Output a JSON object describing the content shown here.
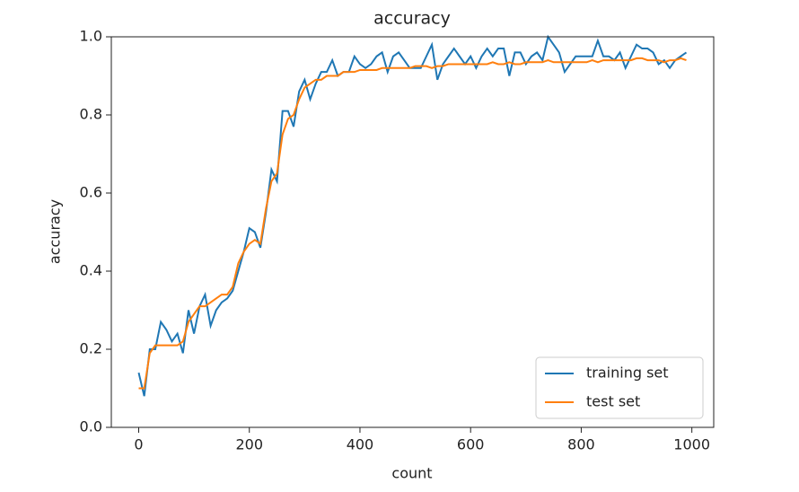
{
  "chart_data": {
    "type": "line",
    "title": "accuracy",
    "x_label": "count",
    "y_label": "accuracy",
    "x": [
      0,
      10,
      20,
      30,
      40,
      50,
      60,
      70,
      80,
      90,
      100,
      110,
      120,
      130,
      140,
      150,
      160,
      170,
      180,
      190,
      200,
      210,
      220,
      230,
      240,
      250,
      260,
      270,
      280,
      290,
      300,
      310,
      320,
      330,
      340,
      350,
      360,
      370,
      380,
      390,
      400,
      410,
      420,
      430,
      440,
      450,
      460,
      470,
      480,
      490,
      500,
      510,
      520,
      530,
      540,
      550,
      560,
      570,
      580,
      590,
      600,
      610,
      620,
      630,
      640,
      650,
      660,
      670,
      680,
      690,
      700,
      710,
      720,
      730,
      740,
      750,
      760,
      770,
      780,
      790,
      800,
      810,
      820,
      830,
      840,
      850,
      860,
      870,
      880,
      890,
      900,
      910,
      920,
      930,
      940,
      950,
      960,
      970,
      980,
      990
    ],
    "series": [
      {
        "name": "training set",
        "color": "#1f77b4",
        "values": [
          0.14,
          0.08,
          0.2,
          0.2,
          0.27,
          0.25,
          0.22,
          0.24,
          0.19,
          0.3,
          0.24,
          0.31,
          0.34,
          0.26,
          0.3,
          0.32,
          0.33,
          0.35,
          0.4,
          0.45,
          0.51,
          0.5,
          0.46,
          0.55,
          0.66,
          0.63,
          0.81,
          0.81,
          0.77,
          0.86,
          0.89,
          0.84,
          0.88,
          0.91,
          0.91,
          0.94,
          0.9,
          0.91,
          0.91,
          0.95,
          0.93,
          0.92,
          0.93,
          0.95,
          0.96,
          0.91,
          0.95,
          0.96,
          0.94,
          0.92,
          0.92,
          0.92,
          0.95,
          0.98,
          0.89,
          0.93,
          0.95,
          0.97,
          0.95,
          0.93,
          0.95,
          0.92,
          0.95,
          0.97,
          0.95,
          0.97,
          0.97,
          0.9,
          0.96,
          0.96,
          0.93,
          0.95,
          0.96,
          0.94,
          1.0,
          0.98,
          0.96,
          0.91,
          0.93,
          0.95,
          0.95,
          0.95,
          0.95,
          0.99,
          0.95,
          0.95,
          0.94,
          0.96,
          0.92,
          0.95,
          0.98,
          0.97,
          0.97,
          0.96,
          0.93,
          0.94,
          0.92,
          0.94,
          0.95,
          0.96
        ]
      },
      {
        "name": "test set",
        "color": "#ff7f0e",
        "values": [
          0.1,
          0.1,
          0.19,
          0.21,
          0.21,
          0.21,
          0.21,
          0.21,
          0.22,
          0.27,
          0.29,
          0.31,
          0.31,
          0.32,
          0.33,
          0.34,
          0.34,
          0.36,
          0.42,
          0.45,
          0.47,
          0.48,
          0.47,
          0.56,
          0.63,
          0.65,
          0.75,
          0.79,
          0.8,
          0.84,
          0.87,
          0.88,
          0.89,
          0.89,
          0.9,
          0.9,
          0.9,
          0.91,
          0.91,
          0.91,
          0.915,
          0.915,
          0.915,
          0.915,
          0.92,
          0.92,
          0.92,
          0.92,
          0.92,
          0.92,
          0.925,
          0.925,
          0.925,
          0.92,
          0.925,
          0.925,
          0.93,
          0.93,
          0.93,
          0.93,
          0.93,
          0.93,
          0.93,
          0.93,
          0.935,
          0.93,
          0.93,
          0.935,
          0.93,
          0.93,
          0.935,
          0.935,
          0.935,
          0.935,
          0.94,
          0.935,
          0.935,
          0.935,
          0.935,
          0.935,
          0.935,
          0.935,
          0.94,
          0.935,
          0.94,
          0.94,
          0.94,
          0.94,
          0.94,
          0.94,
          0.945,
          0.945,
          0.94,
          0.94,
          0.94,
          0.935,
          0.94,
          0.94,
          0.945,
          0.94
        ]
      }
    ],
    "xlim": [
      -49.5,
      1039.5
    ],
    "ylim": [
      0,
      1
    ],
    "xticks": [
      0,
      200,
      400,
      600,
      800,
      1000
    ],
    "yticks": [
      {
        "value": 0,
        "label": "0.0"
      },
      0.2,
      0.4,
      0.6,
      0.8,
      {
        "value": 1,
        "label": "1.0"
      }
    ],
    "legend": "lower right"
  }
}
